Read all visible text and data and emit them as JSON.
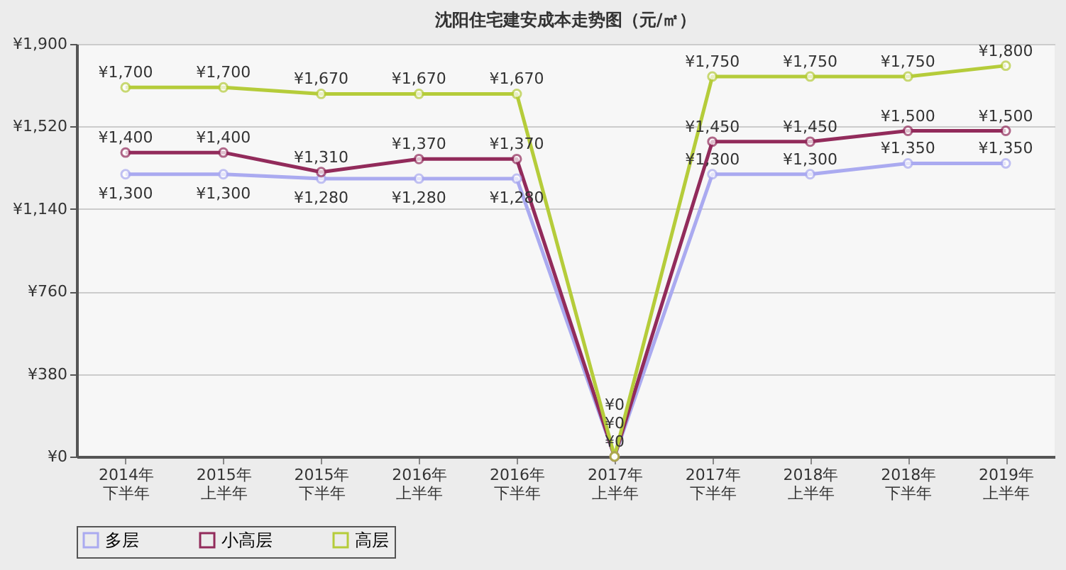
{
  "chart_data": {
    "type": "line",
    "title": "沈阳住宅建安成本走势图（元/㎡）",
    "categories": [
      "2014年下半年",
      "2015年上半年",
      "2015年下半年",
      "2016年上半年",
      "2016年下半年",
      "2017年上半年",
      "2017年下半年",
      "2018年上半年",
      "2018年下半年",
      "2019年上半年"
    ],
    "series": [
      {
        "name": "多层",
        "color": "#aaaaf0",
        "values": [
          1300,
          1300,
          1280,
          1280,
          1280,
          0,
          1300,
          1300,
          1350,
          1350
        ],
        "value_labels": [
          "¥1,300",
          "¥1,300",
          "¥1,280",
          "¥1,280",
          "¥1,280",
          "¥0",
          "¥1,300",
          "¥1,300",
          "¥1,350",
          "¥1,350"
        ]
      },
      {
        "name": "小高层",
        "color": "#922b5b",
        "values": [
          1400,
          1400,
          1310,
          1370,
          1370,
          0,
          1450,
          1450,
          1500,
          1500
        ],
        "value_labels": [
          "¥1,400",
          "¥1,400",
          "¥1,310",
          "¥1,370",
          "¥1,370",
          "¥0",
          "¥1,450",
          "¥1,450",
          "¥1,500",
          "¥1,500"
        ]
      },
      {
        "name": "高层",
        "color": "#b5cc3a",
        "values": [
          1700,
          1700,
          1670,
          1670,
          1670,
          0,
          1750,
          1750,
          1750,
          1800
        ],
        "value_labels": [
          "¥1,700",
          "¥1,700",
          "¥1,670",
          "¥1,670",
          "¥1,670",
          "¥0",
          "¥1,750",
          "¥1,750",
          "¥1,750",
          "¥1,800"
        ]
      }
    ],
    "ylim": [
      0,
      1900
    ],
    "yticks": [
      {
        "value": 0,
        "label": "¥0"
      },
      {
        "value": 380,
        "label": "¥380"
      },
      {
        "value": 760,
        "label": "¥760"
      },
      {
        "value": 1140,
        "label": "¥1,140"
      },
      {
        "value": 1520,
        "label": "¥1,520"
      },
      {
        "value": 1900,
        "label": "¥1,900"
      }
    ],
    "grid": "y",
    "legend": "bottom",
    "marker": "circle",
    "line_style": "solid"
  }
}
